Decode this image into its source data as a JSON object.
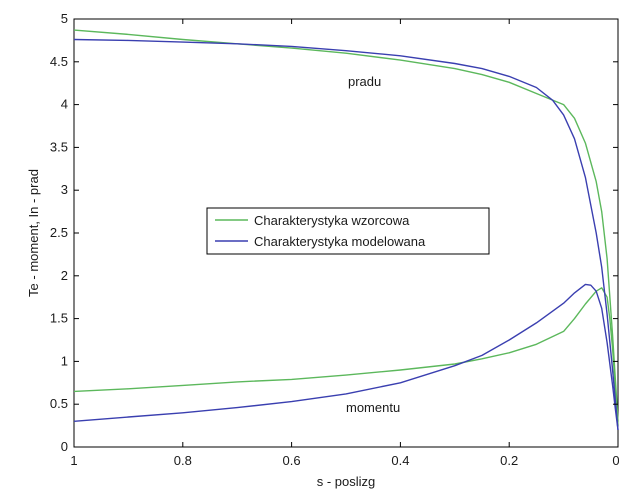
{
  "chart_data": {
    "type": "line",
    "xlabel": "s - poslizg",
    "ylabel": "Te - moment, In - prad",
    "xlim": [
      1,
      0
    ],
    "ylim": [
      0,
      5
    ],
    "x_reversed": true,
    "grid": false,
    "legend_position": "center",
    "x_ticks": [
      {
        "value": 1,
        "label": "1"
      },
      {
        "value": 0.8,
        "label": "0.8"
      },
      {
        "value": 0.6,
        "label": "0.6"
      },
      {
        "value": 0.4,
        "label": "0.4"
      },
      {
        "value": 0.2,
        "label": "0.2"
      },
      {
        "value": 0,
        "label": "0"
      }
    ],
    "y_ticks": [
      {
        "value": 0,
        "label": "0"
      },
      {
        "value": 0.5,
        "label": "0.5"
      },
      {
        "value": 1,
        "label": "1"
      },
      {
        "value": 1.5,
        "label": "1.5"
      },
      {
        "value": 2,
        "label": "2"
      },
      {
        "value": 2.5,
        "label": "2.5"
      },
      {
        "value": 3,
        "label": "3"
      },
      {
        "value": 3.5,
        "label": "3.5"
      },
      {
        "value": 4,
        "label": "4"
      },
      {
        "value": 4.5,
        "label": "4.5"
      },
      {
        "value": 5,
        "label": "5"
      }
    ],
    "annotations": [
      {
        "text": "pradu",
        "x": 0.52,
        "y": 4.3
      },
      {
        "text": "momentu",
        "x": 0.44,
        "y": 0.45
      }
    ],
    "series": [
      {
        "name": "Charakterystyka wzorcowa",
        "color": "#5cb85c",
        "curves": [
          [
            [
              1,
              4.87
            ],
            [
              0.9,
              4.82
            ],
            [
              0.8,
              4.76
            ],
            [
              0.7,
              4.71
            ],
            [
              0.6,
              4.66
            ],
            [
              0.5,
              4.6
            ],
            [
              0.4,
              4.52
            ],
            [
              0.3,
              4.42
            ],
            [
              0.25,
              4.35
            ],
            [
              0.2,
              4.26
            ],
            [
              0.15,
              4.13
            ],
            [
              0.1,
              4.0
            ],
            [
              0.08,
              3.84
            ],
            [
              0.06,
              3.55
            ],
            [
              0.04,
              3.1
            ],
            [
              0.03,
              2.75
            ],
            [
              0.02,
              2.2
            ],
            [
              0.01,
              1.3
            ],
            [
              0.005,
              0.8
            ],
            [
              0,
              0.3
            ]
          ],
          [
            [
              1,
              0.65
            ],
            [
              0.9,
              0.68
            ],
            [
              0.8,
              0.72
            ],
            [
              0.7,
              0.76
            ],
            [
              0.6,
              0.79
            ],
            [
              0.5,
              0.84
            ],
            [
              0.4,
              0.9
            ],
            [
              0.3,
              0.97
            ],
            [
              0.25,
              1.03
            ],
            [
              0.2,
              1.1
            ],
            [
              0.15,
              1.2
            ],
            [
              0.1,
              1.35
            ],
            [
              0.08,
              1.5
            ],
            [
              0.06,
              1.67
            ],
            [
              0.04,
              1.82
            ],
            [
              0.03,
              1.86
            ],
            [
              0.02,
              1.75
            ],
            [
              0.015,
              1.5
            ],
            [
              0.01,
              1.15
            ],
            [
              0.005,
              0.7
            ],
            [
              0,
              0.25
            ]
          ]
        ]
      },
      {
        "name": "Charakterystyka modelowana",
        "color": "#3a3fb0",
        "curves": [
          [
            [
              1,
              4.76
            ],
            [
              0.9,
              4.75
            ],
            [
              0.8,
              4.73
            ],
            [
              0.7,
              4.71
            ],
            [
              0.6,
              4.68
            ],
            [
              0.5,
              4.63
            ],
            [
              0.4,
              4.57
            ],
            [
              0.3,
              4.48
            ],
            [
              0.25,
              4.42
            ],
            [
              0.2,
              4.33
            ],
            [
              0.15,
              4.2
            ],
            [
              0.12,
              4.05
            ],
            [
              0.1,
              3.88
            ],
            [
              0.08,
              3.6
            ],
            [
              0.06,
              3.15
            ],
            [
              0.04,
              2.5
            ],
            [
              0.03,
              2.1
            ],
            [
              0.02,
              1.55
            ],
            [
              0.01,
              0.9
            ],
            [
              0.005,
              0.55
            ],
            [
              0,
              0.2
            ]
          ],
          [
            [
              1,
              0.3
            ],
            [
              0.9,
              0.35
            ],
            [
              0.8,
              0.4
            ],
            [
              0.7,
              0.46
            ],
            [
              0.6,
              0.53
            ],
            [
              0.5,
              0.62
            ],
            [
              0.4,
              0.75
            ],
            [
              0.3,
              0.95
            ],
            [
              0.25,
              1.07
            ],
            [
              0.2,
              1.25
            ],
            [
              0.15,
              1.45
            ],
            [
              0.1,
              1.68
            ],
            [
              0.08,
              1.8
            ],
            [
              0.06,
              1.9
            ],
            [
              0.05,
              1.89
            ],
            [
              0.04,
              1.82
            ],
            [
              0.03,
              1.62
            ],
            [
              0.02,
              1.22
            ],
            [
              0.01,
              0.72
            ],
            [
              0.005,
              0.45
            ],
            [
              0,
              0.2
            ]
          ]
        ]
      }
    ]
  }
}
